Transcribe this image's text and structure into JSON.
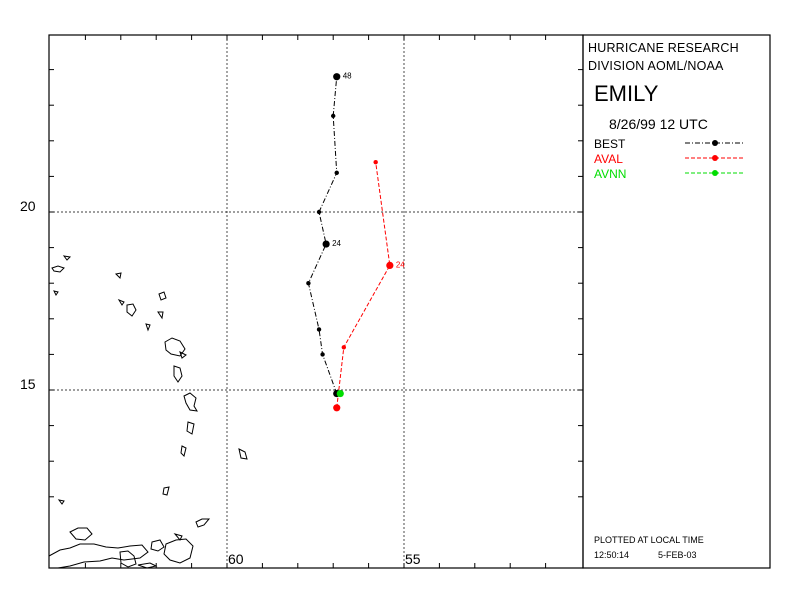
{
  "header": {
    "line1": "HURRICANE RESEARCH",
    "line2": "DIVISION AOML/NOAA",
    "storm_name": "EMILY",
    "datetime": "8/26/99 12   UTC"
  },
  "legend": [
    {
      "label": "BEST",
      "color": "#000000"
    },
    {
      "label": "AVAL",
      "color": "#ff0000"
    },
    {
      "label": "AVNN",
      "color": "#00dd00"
    }
  ],
  "footer": {
    "plotted": "PLOTTED AT LOCAL TIME",
    "time": "12:50:14",
    "date": "5-FEB-03"
  },
  "axes": {
    "lon_labels": [
      "60",
      "55"
    ],
    "lat_labels": [
      "20",
      "15"
    ]
  },
  "tracks": [
    {
      "name": "BEST",
      "color": "#000000",
      "points": [
        {
          "lon": 56.9,
          "lat": 14.9,
          "label": ""
        },
        {
          "lon": 57.3,
          "lat": 16.0,
          "label": ""
        },
        {
          "lon": 57.4,
          "lat": 16.7,
          "label": ""
        },
        {
          "lon": 57.7,
          "lat": 18.0,
          "label": ""
        },
        {
          "lon": 57.2,
          "lat": 19.1,
          "label": "24"
        },
        {
          "lon": 57.4,
          "lat": 20.0,
          "label": ""
        },
        {
          "lon": 56.9,
          "lat": 21.1,
          "label": ""
        },
        {
          "lon": 57.0,
          "lat": 22.7,
          "label": ""
        },
        {
          "lon": 56.9,
          "lat": 23.8,
          "label": "48"
        }
      ]
    },
    {
      "name": "AVAL",
      "color": "#ff0000",
      "points": [
        {
          "lon": 56.9,
          "lat": 14.5,
          "label": ""
        },
        {
          "lon": 56.7,
          "lat": 16.2,
          "label": ""
        },
        {
          "lon": 55.4,
          "lat": 18.5,
          "label": "24"
        },
        {
          "lon": 55.8,
          "lat": 21.4,
          "label": ""
        }
      ]
    },
    {
      "name": "AVNN",
      "color": "#00dd00",
      "points": [
        {
          "lon": 56.8,
          "lat": 14.9,
          "label": ""
        }
      ]
    }
  ]
}
